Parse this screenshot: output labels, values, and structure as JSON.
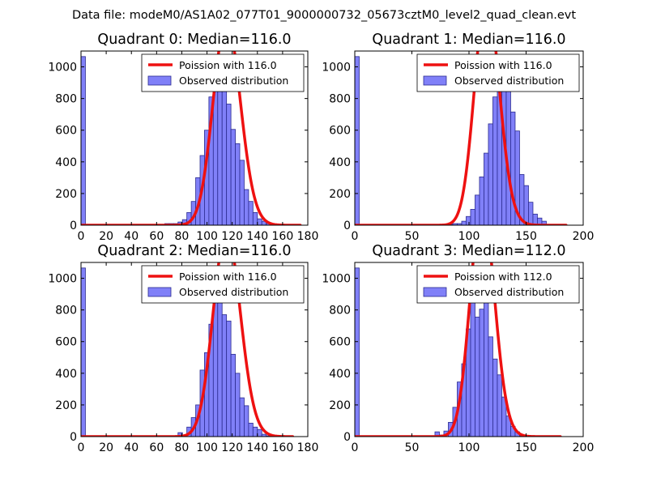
{
  "figure": {
    "suptitle": "Data file: modeM0/AS1A02_077T01_9000000732_05673cztM0_level2_quad_clean.evt"
  },
  "colors": {
    "hist_fill": "#8080f8",
    "hist_edge": "#2b2b90",
    "curve": "#ee1111",
    "background": "#ffffff"
  },
  "chart_data": [
    {
      "type": "bar",
      "title": "Quadrant 0: Median=116.0",
      "xlim": [
        0,
        180
      ],
      "ylim": [
        0,
        1100
      ],
      "xticks": [
        0,
        20,
        40,
        60,
        80,
        100,
        120,
        140,
        160,
        180
      ],
      "yticks": [
        0,
        200,
        400,
        600,
        800,
        1000
      ],
      "legend": [
        "Poission with 116.0",
        "Observed distribution"
      ],
      "legend_loc": "upper right",
      "hist": {
        "start": 0,
        "binwidth": 3.5,
        "counts": [
          1065,
          0,
          0,
          0,
          0,
          0,
          0,
          0,
          0,
          0,
          0,
          0,
          0,
          0,
          0,
          0,
          0,
          0,
          5,
          10,
          10,
          10,
          20,
          35,
          80,
          150,
          300,
          440,
          600,
          810,
          945,
          1035,
          975,
          765,
          605,
          515,
          410,
          225,
          150,
          80,
          40,
          25,
          10,
          5
        ]
      },
      "curve": {
        "label": "Poission with 116.0",
        "lambda": 116.0,
        "scale": 3.5,
        "x": [
          0,
          174
        ]
      }
    },
    {
      "type": "bar",
      "title": "Quadrant 1: Median=116.0",
      "xlim": [
        0,
        200
      ],
      "ylim": [
        0,
        1100
      ],
      "xticks": [
        0,
        50,
        100,
        150,
        200
      ],
      "yticks": [
        0,
        200,
        400,
        600,
        800,
        1000
      ],
      "legend": [
        "Poission with 116.0",
        "Observed distribution"
      ],
      "legend_loc": "upper right",
      "hist": {
        "start": 0,
        "binwidth": 3.9,
        "counts": [
          1065,
          0,
          0,
          0,
          0,
          0,
          0,
          0,
          0,
          0,
          0,
          0,
          0,
          0,
          0,
          0,
          0,
          0,
          5,
          5,
          5,
          5,
          10,
          10,
          25,
          55,
          100,
          190,
          305,
          455,
          640,
          810,
          875,
          1030,
          935,
          715,
          595,
          320,
          250,
          145,
          70,
          45,
          25,
          5,
          5
        ]
      },
      "curve": {
        "label": "Poission with 116.0",
        "lambda": 116.0,
        "scale": 3.9,
        "x": [
          0,
          185
        ]
      }
    },
    {
      "type": "bar",
      "title": "Quadrant 2: Median=116.0",
      "xlim": [
        0,
        180
      ],
      "ylim": [
        0,
        1100
      ],
      "xticks": [
        0,
        20,
        40,
        60,
        80,
        100,
        120,
        140,
        160,
        180
      ],
      "yticks": [
        0,
        200,
        400,
        600,
        800,
        1000
      ],
      "legend": [
        "Poission with 116.0",
        "Observed distribution"
      ],
      "legend_loc": "upper right",
      "hist": {
        "start": 0,
        "binwidth": 3.5,
        "counts": [
          1065,
          0,
          0,
          0,
          0,
          0,
          0,
          0,
          0,
          0,
          0,
          0,
          0,
          0,
          0,
          0,
          0,
          0,
          0,
          0,
          0,
          0,
          25,
          10,
          60,
          120,
          200,
          420,
          530,
          710,
          1000,
          990,
          770,
          730,
          520,
          400,
          245,
          195,
          85,
          60,
          45,
          15,
          5
        ]
      },
      "curve": {
        "label": "Poission with 116.0",
        "lambda": 116.0,
        "scale": 3.5,
        "x": [
          0,
          168
        ]
      }
    },
    {
      "type": "bar",
      "title": "Quadrant 3: Median=112.0",
      "xlim": [
        0,
        200
      ],
      "ylim": [
        0,
        1100
      ],
      "xticks": [
        0,
        50,
        100,
        150,
        200
      ],
      "yticks": [
        0,
        200,
        400,
        600,
        800,
        1000
      ],
      "legend": [
        "Poission with 112.0",
        "Observed distribution"
      ],
      "legend_loc": "upper right",
      "hist": {
        "start": 0,
        "binwidth": 3.9,
        "counts": [
          1065,
          0,
          0,
          0,
          0,
          0,
          0,
          0,
          0,
          0,
          0,
          0,
          0,
          0,
          0,
          0,
          0,
          5,
          30,
          10,
          35,
          90,
          185,
          345,
          460,
          680,
          885,
          755,
          805,
          940,
          630,
          490,
          390,
          250,
          130,
          65,
          30,
          5,
          5
        ]
      },
      "curve": {
        "label": "Poission with 112.0",
        "lambda": 112.0,
        "scale": 3.9,
        "x": [
          0,
          180
        ]
      }
    }
  ]
}
